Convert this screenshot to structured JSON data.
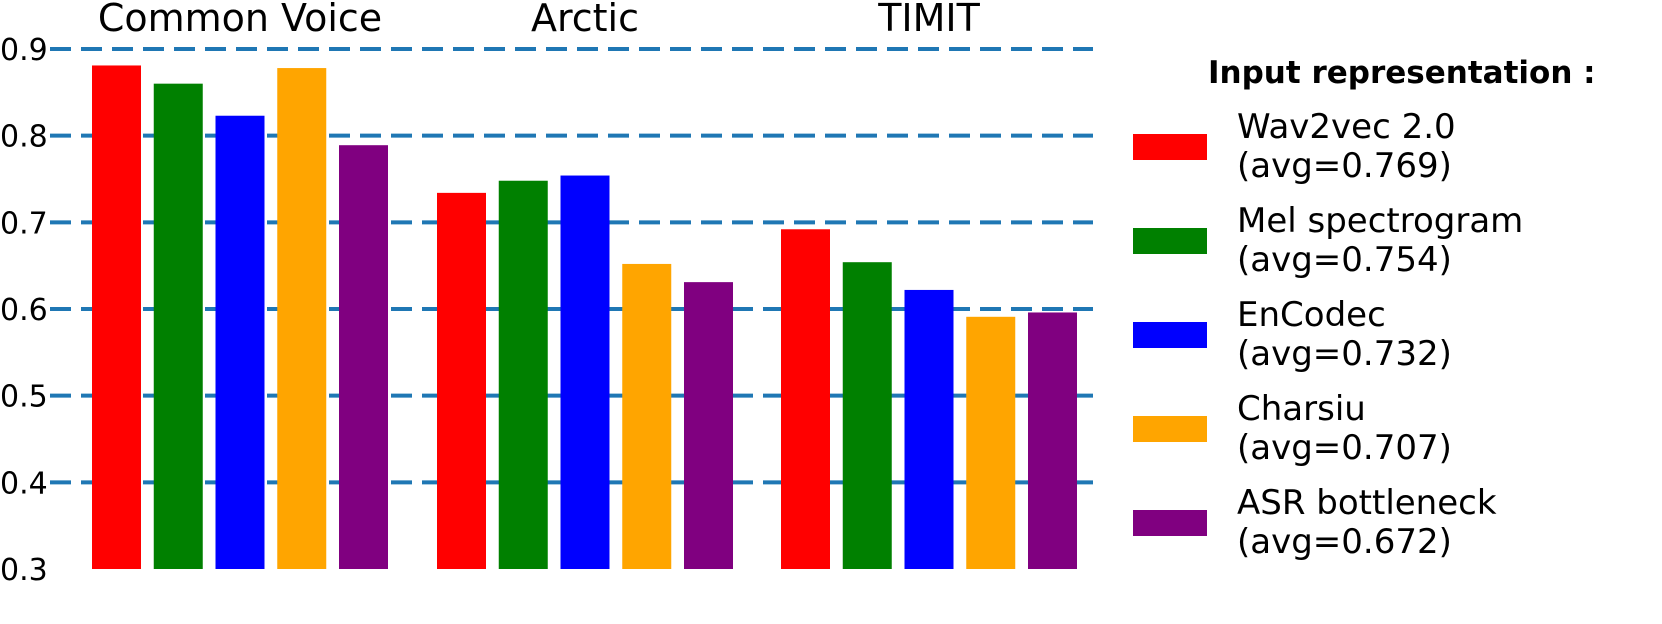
{
  "chart_data": {
    "type": "bar",
    "categories": [
      "Common Voice",
      "Arctic",
      "TIMIT"
    ],
    "series": [
      {
        "name": "Wav2vec 2.0",
        "avg_label": "(avg=0.769)",
        "color": "#ff0000",
        "values": [
          0.881,
          0.734,
          0.692
        ]
      },
      {
        "name": "Mel spectrogram",
        "avg_label": "(avg=0.754)",
        "color": "#008000",
        "values": [
          0.86,
          0.748,
          0.654
        ]
      },
      {
        "name": "EnCodec",
        "avg_label": "(avg=0.732)",
        "color": "#0000ff",
        "values": [
          0.823,
          0.754,
          0.622
        ]
      },
      {
        "name": "Charsiu",
        "avg_label": "(avg=0.707)",
        "color": "#ffa500",
        "values": [
          0.878,
          0.652,
          0.591
        ]
      },
      {
        "name": "ASR bottleneck",
        "avg_label": "(avg=0.672)",
        "color": "#800080",
        "values": [
          0.789,
          0.631,
          0.596
        ]
      }
    ],
    "y_ticks": [
      "0.3",
      "0.4",
      "0.5",
      "0.6",
      "0.7",
      "0.8",
      "0.9"
    ],
    "ylim": [
      0.3,
      0.9
    ],
    "gridlines": [
      0.4,
      0.5,
      0.6,
      0.7,
      0.8,
      0.9
    ],
    "grid_style": "dashed-horizontal",
    "grid_color": "#1f77b4",
    "legend_title": "Input representation :",
    "legend_placement": "right",
    "title": "",
    "xlabel": "",
    "ylabel": ""
  }
}
